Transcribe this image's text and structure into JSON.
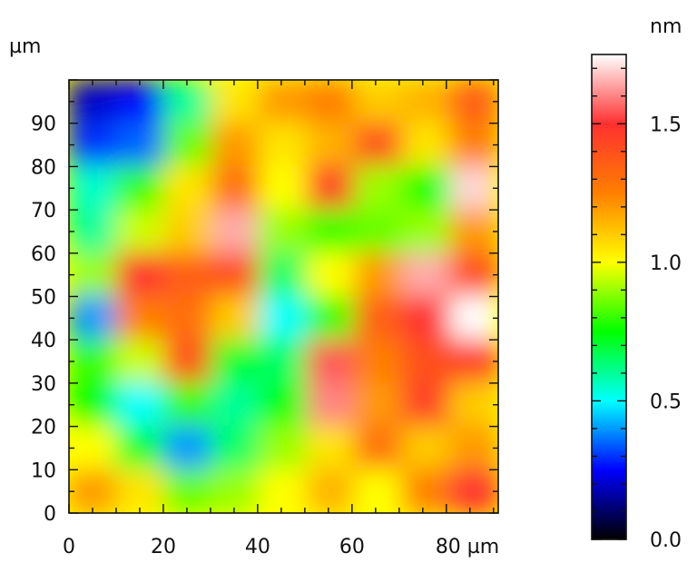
{
  "chart_data": {
    "type": "heatmap",
    "title": "",
    "xlabel": "",
    "ylabel": "",
    "x_unit": "µm",
    "y_unit": "µm",
    "xlim": [
      0,
      91
    ],
    "ylim": [
      0,
      100
    ],
    "x_ticks": [
      0,
      20,
      40,
      60,
      80
    ],
    "x_tick_labels": [
      "0",
      "20",
      "40",
      "60",
      "80 µm"
    ],
    "y_ticks": [
      0,
      10,
      20,
      30,
      40,
      50,
      60,
      70,
      80,
      90
    ],
    "y_tick_labels": [
      "0",
      "10",
      "20",
      "30",
      "40",
      "50",
      "60",
      "70",
      "80",
      "90"
    ],
    "colorbar": {
      "unit": "nm",
      "range": [
        0.0,
        1.75
      ],
      "ticks": [
        0.0,
        0.5,
        1.0,
        1.5
      ],
      "tick_labels": [
        "0.0",
        "0.5",
        "1.0",
        "1.5"
      ],
      "colors": [
        "#000000",
        "#0000ff",
        "#00ffff",
        "#00ff00",
        "#ffff00",
        "#ff7f00",
        "#ff3030",
        "#ffffff"
      ]
    },
    "grid": {
      "rows_top_to_bottom": 10,
      "cols_left_to_right": 9,
      "z_nm": [
        [
          0.2,
          0.25,
          0.6,
          1.05,
          1.2,
          1.25,
          1.1,
          1.15,
          1.35
        ],
        [
          0.3,
          0.35,
          0.85,
          1.2,
          1.05,
          1.15,
          1.4,
          1.05,
          1.25
        ],
        [
          0.55,
          0.8,
          1.05,
          1.3,
          1.0,
          1.45,
          0.9,
          0.75,
          1.7
        ],
        [
          0.6,
          0.95,
          1.1,
          1.65,
          0.9,
          0.8,
          0.85,
          0.9,
          1.2
        ],
        [
          0.9,
          1.5,
          1.35,
          1.4,
          0.65,
          1.0,
          1.2,
          1.65,
          1.4
        ],
        [
          0.4,
          1.25,
          1.3,
          1.1,
          0.5,
          0.8,
          1.35,
          1.5,
          1.75
        ],
        [
          0.8,
          0.95,
          1.4,
          0.7,
          0.65,
          1.55,
          1.25,
          1.4,
          1.45
        ],
        [
          0.75,
          0.5,
          0.8,
          0.6,
          0.75,
          1.6,
          1.2,
          1.45,
          1.1
        ],
        [
          1.0,
          0.7,
          0.4,
          0.65,
          0.9,
          1.05,
          1.3,
          1.1,
          1.2
        ],
        [
          1.2,
          1.05,
          0.85,
          0.9,
          1.0,
          1.15,
          1.0,
          1.25,
          1.5
        ]
      ]
    }
  }
}
